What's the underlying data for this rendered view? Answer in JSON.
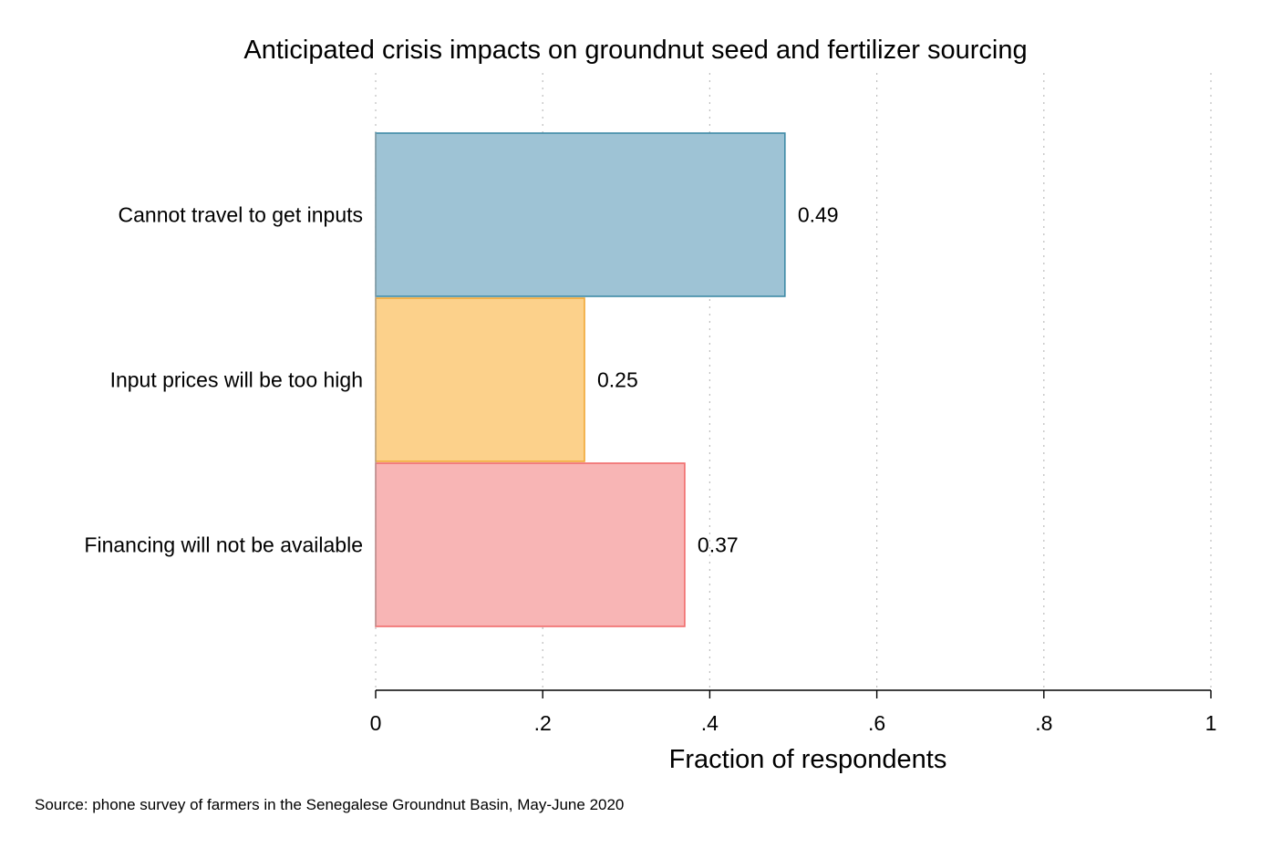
{
  "chart_data": {
    "type": "bar",
    "orientation": "horizontal",
    "title": "Anticipated crisis impacts on groundnut seed and fertilizer sourcing",
    "categories": [
      "Cannot travel to get inputs",
      "Input prices will be too high",
      "Financing will not be available"
    ],
    "values": [
      0.49,
      0.25,
      0.37
    ],
    "value_labels": [
      "0.49",
      "0.25",
      "0.37"
    ],
    "xlabel": "Fraction of respondents",
    "ylabel": "",
    "xlim": [
      0,
      1
    ],
    "ticks": [
      0,
      0.2,
      0.4,
      0.6,
      0.8,
      1
    ],
    "tick_labels": [
      "0",
      ".2",
      ".4",
      ".6",
      ".8",
      "1"
    ],
    "grid": "vertical-dotted",
    "colors": {
      "fill": [
        "#9ec3d5",
        "#fcd18b",
        "#f8b5b5"
      ],
      "stroke": [
        "#3f8aa7",
        "#f0a736",
        "#f06c6c"
      ]
    },
    "note": "Source: phone survey of farmers in the Senegalese Groundnut Basin, May-June 2020"
  }
}
